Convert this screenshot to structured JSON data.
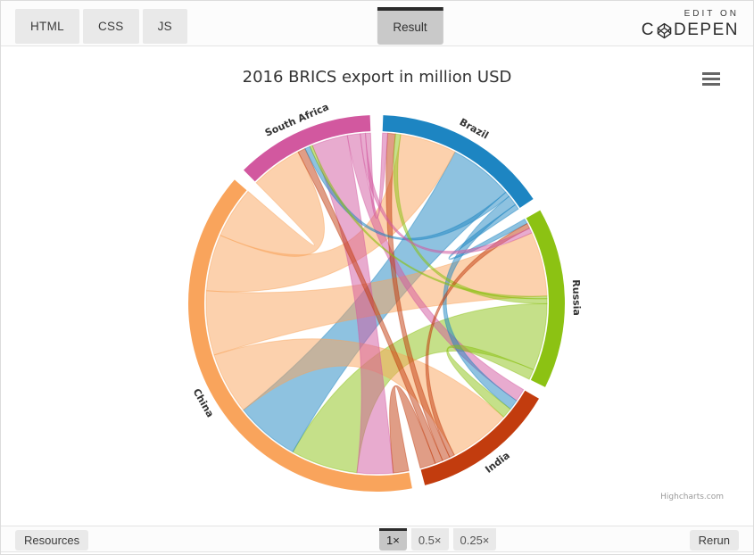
{
  "topbar": {
    "tabs": [
      {
        "label": "HTML"
      },
      {
        "label": "CSS"
      },
      {
        "label": "JS"
      }
    ],
    "result_label": "Result",
    "edit_on": "EDIT ON",
    "brand_left": "C",
    "brand_right": "DEPEN"
  },
  "chart": {
    "title": "2016 BRICS export in million USD",
    "credits": "Highcharts.com"
  },
  "chart_data": {
    "type": "chord",
    "title": "2016 BRICS export in million USD",
    "legend": "none",
    "note": "Directed export flows between BRICS countries; weights estimated from ribbon widths (relative units)",
    "nodes": [
      {
        "id": "brazil",
        "label": "Brazil",
        "color": "#1d85c2",
        "order": [
          18,
          9,
          5,
          12,
          0,
          3,
          1,
          2
        ]
      },
      {
        "id": "russia",
        "label": "Russia",
        "color": "#8cc213",
        "order": [
          2,
          10,
          19,
          13,
          7,
          5,
          4,
          6
        ]
      },
      {
        "id": "india",
        "label": "India",
        "color": "#c23c0e",
        "order": [
          17,
          1,
          6,
          14,
          10,
          9,
          11,
          8
        ]
      },
      {
        "id": "china",
        "label": "China",
        "color": "#f9a45c",
        "order": [
          8,
          16,
          4,
          0,
          14,
          13,
          12,
          15
        ]
      },
      {
        "id": "south-africa",
        "label": "South Africa",
        "color": "#d2589f",
        "order": [
          15,
          11,
          3,
          7,
          16,
          17,
          19,
          18
        ]
      }
    ],
    "links": [
      {
        "from": "brazil",
        "to": "china",
        "weight": 25
      },
      {
        "from": "brazil",
        "to": "india",
        "weight": 4
      },
      {
        "from": "brazil",
        "to": "russia",
        "weight": 2
      },
      {
        "from": "brazil",
        "to": "south-africa",
        "weight": 2
      },
      {
        "from": "russia",
        "to": "china",
        "weight": 26
      },
      {
        "from": "russia",
        "to": "brazil",
        "weight": 2
      },
      {
        "from": "russia",
        "to": "india",
        "weight": 4
      },
      {
        "from": "russia",
        "to": "south-africa",
        "weight": 1
      },
      {
        "from": "india",
        "to": "china",
        "weight": 6
      },
      {
        "from": "india",
        "to": "brazil",
        "weight": 3
      },
      {
        "from": "india",
        "to": "russia",
        "weight": 2
      },
      {
        "from": "india",
        "to": "south-africa",
        "weight": 3
      },
      {
        "from": "china",
        "to": "brazil",
        "weight": 22
      },
      {
        "from": "china",
        "to": "russia",
        "weight": 25
      },
      {
        "from": "china",
        "to": "india",
        "weight": 24
      },
      {
        "from": "china",
        "to": "south-africa",
        "weight": 20
      },
      {
        "from": "south-africa",
        "to": "china",
        "weight": 14
      },
      {
        "from": "south-africa",
        "to": "india",
        "weight": 5
      },
      {
        "from": "south-africa",
        "to": "brazil",
        "weight": 2
      },
      {
        "from": "south-africa",
        "to": "russia",
        "weight": 2
      }
    ]
  },
  "bottombar": {
    "resources_label": "Resources",
    "zoom_options": [
      {
        "label": "1×",
        "active": true
      },
      {
        "label": "0.5×",
        "active": false
      },
      {
        "label": "0.25×",
        "active": false
      }
    ],
    "rerun_label": "Rerun"
  }
}
